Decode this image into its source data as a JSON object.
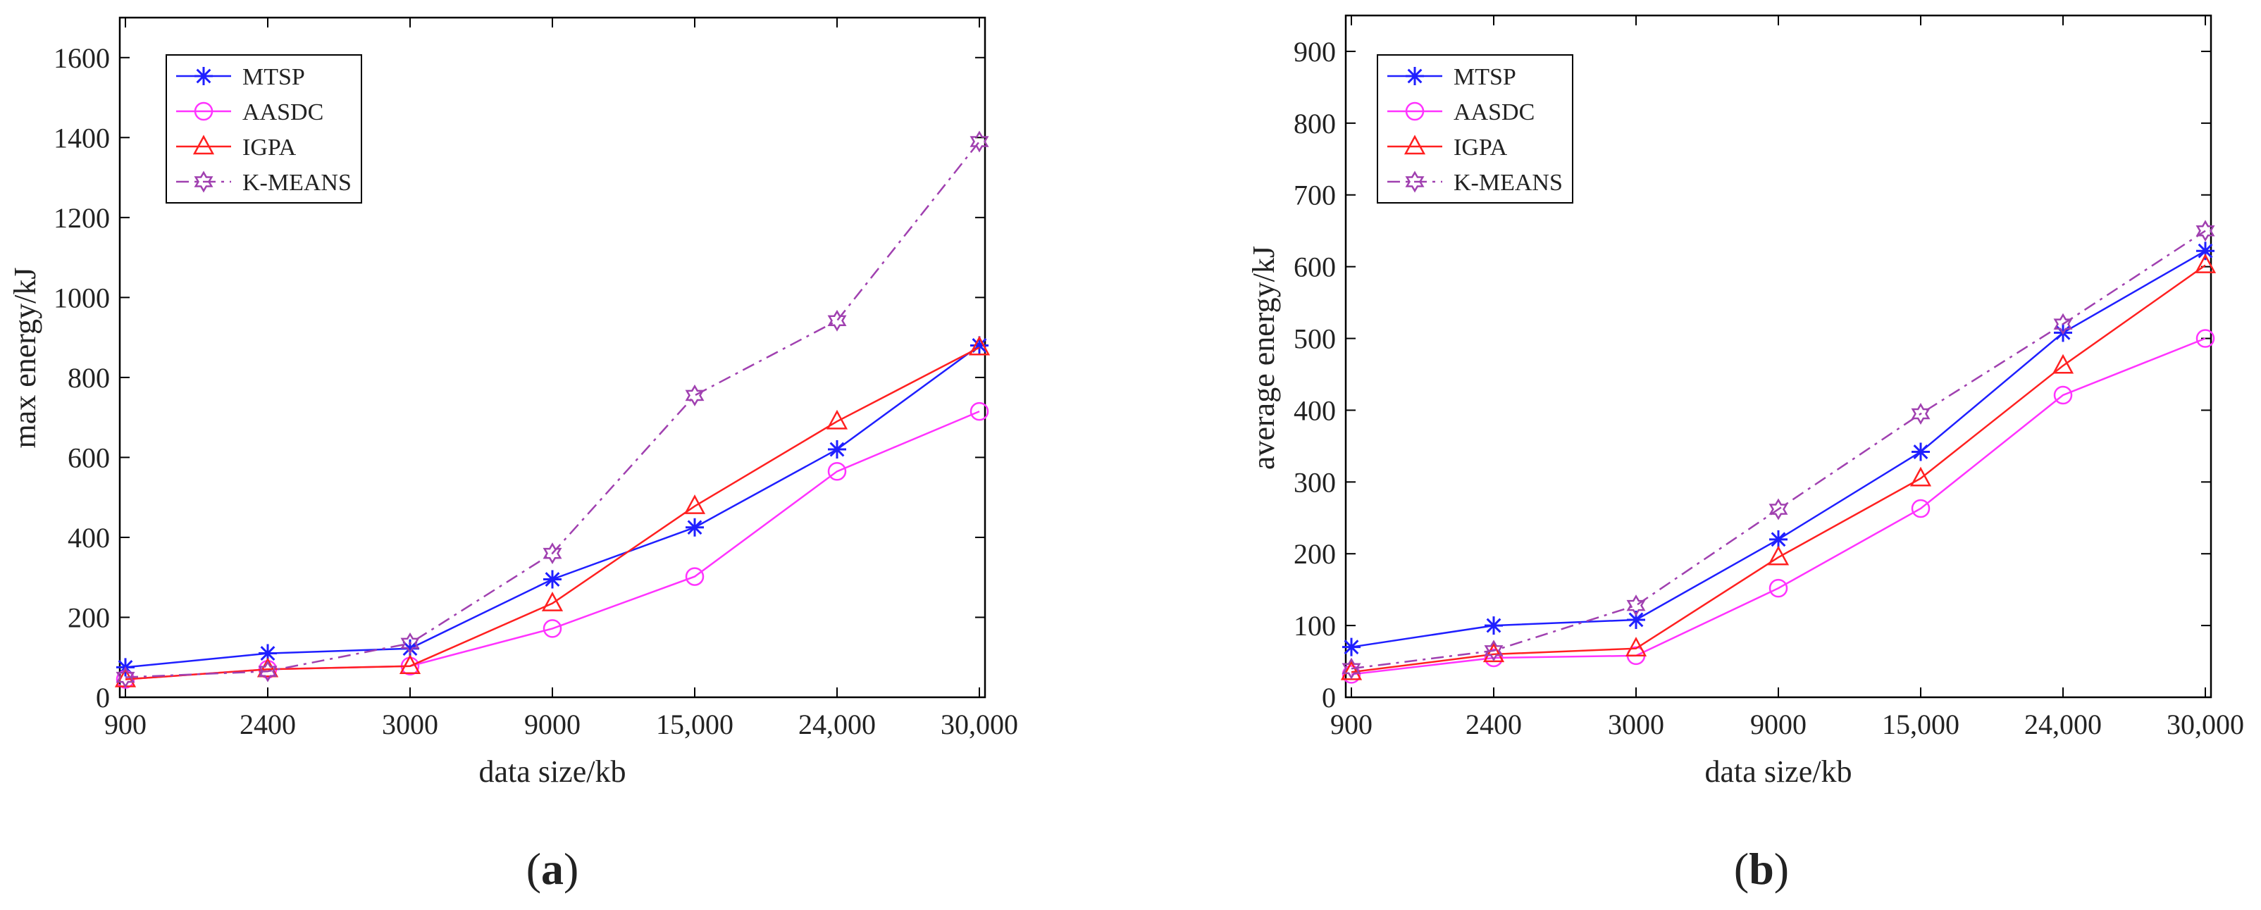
{
  "chart_data": [
    {
      "type": "line",
      "id": "a",
      "panel_label": "(a)",
      "panel_letter": "a",
      "xlabel": "data size/kb",
      "ylabel": "max energy/kJ",
      "categories": [
        "900",
        "2400",
        "3000",
        "9000",
        "15,000",
        "24,000",
        "30,000"
      ],
      "ylim": [
        0,
        1700
      ],
      "yticks": [
        0,
        200,
        400,
        600,
        800,
        1000,
        1200,
        1400,
        1600
      ],
      "legend_position": "top-left",
      "series": [
        {
          "name": "MTSP",
          "color": "#1f1fff",
          "marker": "star",
          "dash": "solid",
          "values": [
            75,
            110,
            122,
            295,
            425,
            620,
            880
          ]
        },
        {
          "name": "AASDC",
          "color": "#ff33ff",
          "marker": "circle",
          "dash": "solid",
          "values": [
            45,
            70,
            78,
            172,
            302,
            565,
            715
          ]
        },
        {
          "name": "IGPA",
          "color": "#ff2020",
          "marker": "triangle",
          "dash": "solid",
          "values": [
            45,
            70,
            78,
            235,
            478,
            690,
            875
          ]
        },
        {
          "name": "K-MEANS",
          "color": "#a040b0",
          "marker": "hexagram",
          "dash": "dashdot",
          "values": [
            50,
            65,
            135,
            360,
            755,
            942,
            1390
          ]
        }
      ]
    },
    {
      "type": "line",
      "id": "b",
      "panel_label": "(b)",
      "panel_letter": "b",
      "xlabel": "data size/kb",
      "ylabel": "average energy/kJ",
      "categories": [
        "900",
        "2400",
        "3000",
        "9000",
        "15,000",
        "24,000",
        "30,000"
      ],
      "ylim": [
        0,
        950
      ],
      "yticks": [
        0,
        100,
        200,
        300,
        400,
        500,
        600,
        700,
        800,
        900
      ],
      "legend_position": "top-left",
      "series": [
        {
          "name": "MTSP",
          "color": "#1f1fff",
          "marker": "star",
          "dash": "solid",
          "values": [
            70,
            100,
            108,
            220,
            342,
            508,
            622
          ]
        },
        {
          "name": "AASDC",
          "color": "#ff33ff",
          "marker": "circle",
          "dash": "solid",
          "values": [
            32,
            55,
            58,
            152,
            263,
            421,
            500
          ]
        },
        {
          "name": "IGPA",
          "color": "#ff2020",
          "marker": "triangle",
          "dash": "solid",
          "values": [
            35,
            60,
            68,
            195,
            305,
            462,
            602
          ]
        },
        {
          "name": "K-MEANS",
          "color": "#a040b0",
          "marker": "hexagram",
          "dash": "dashdot",
          "values": [
            40,
            65,
            128,
            262,
            395,
            520,
            650
          ]
        }
      ]
    }
  ]
}
